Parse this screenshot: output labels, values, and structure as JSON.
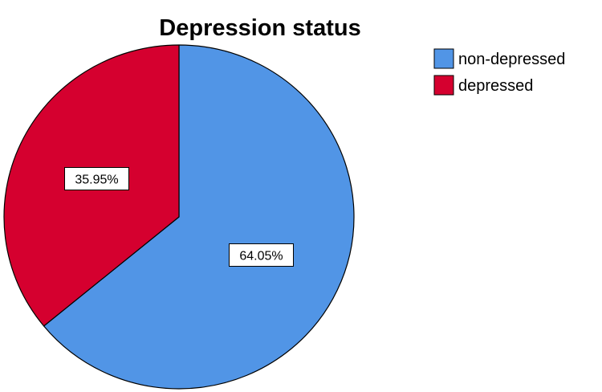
{
  "chart_data": {
    "type": "pie",
    "title": "Depression status",
    "legend_position": "top-right",
    "start_angle_deg": 0,
    "direction": "clockwise",
    "slices": [
      {
        "label": "non-depressed",
        "value": 64.05,
        "data_label": "64.05%",
        "color": "#5195E6"
      },
      {
        "label": "depressed",
        "value": 35.95,
        "data_label": "35.95%",
        "color": "#D5002F"
      }
    ]
  }
}
